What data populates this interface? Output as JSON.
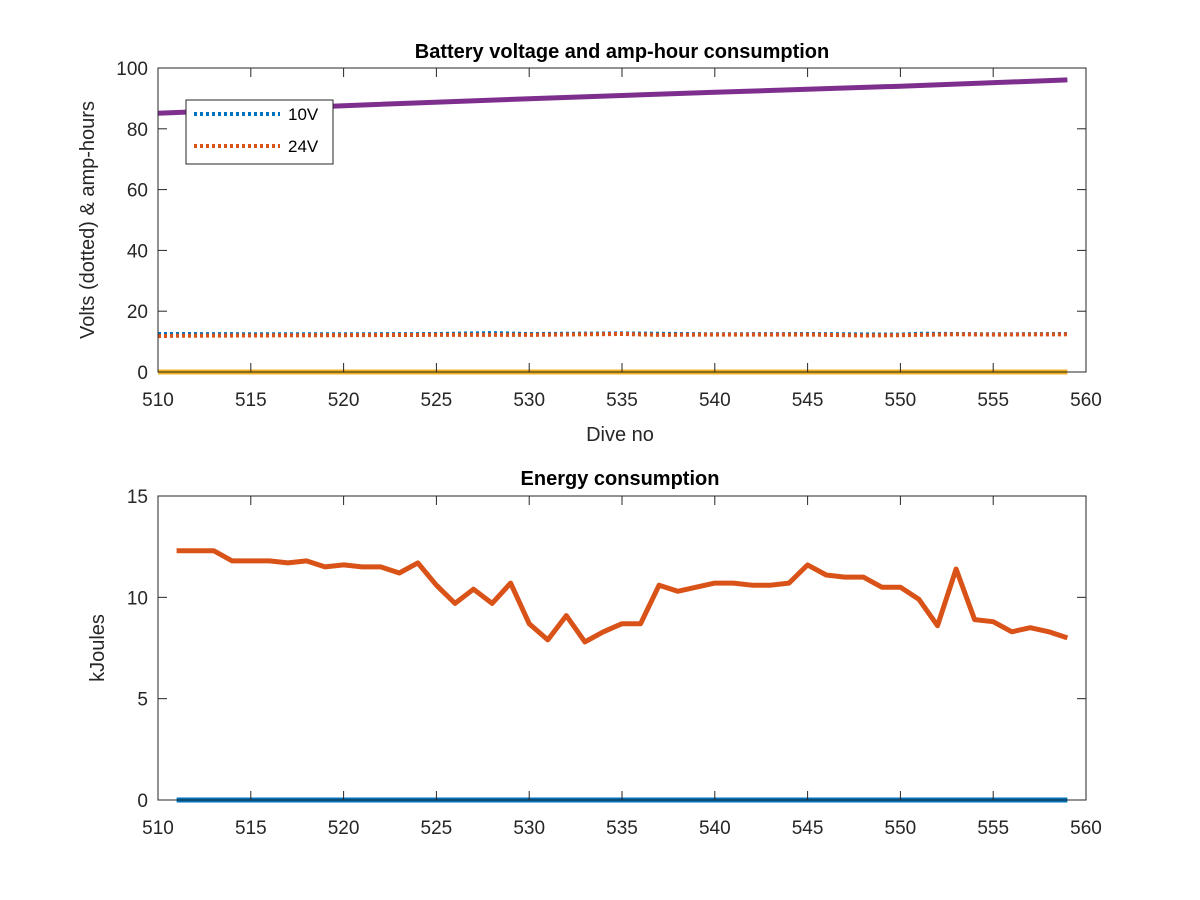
{
  "chart_data": [
    {
      "type": "line",
      "title": "Battery voltage and amp-hour consumption",
      "xlabel": "Dive no",
      "ylabel": "Volts (dotted) & amp-hours",
      "xlim": [
        510,
        560
      ],
      "ylim": [
        0,
        100
      ],
      "xticks": [
        510,
        515,
        520,
        525,
        530,
        535,
        540,
        545,
        550,
        555,
        560
      ],
      "yticks": [
        0,
        20,
        40,
        60,
        80,
        100
      ],
      "grid": false,
      "legend_position": "top-left",
      "series": [
        {
          "name": "10V",
          "style": "dotted",
          "color": "#0072BD",
          "x": [
            510,
            511,
            516,
            520,
            525,
            528,
            530,
            535,
            540,
            545,
            550,
            551,
            555,
            559
          ],
          "y": [
            12.5,
            12.5,
            12.4,
            12.4,
            12.5,
            12.8,
            12.5,
            12.7,
            12.4,
            12.5,
            12.3,
            12.6,
            12.4,
            12.5
          ]
        },
        {
          "name": "24V",
          "style": "dotted",
          "color": "#D95319",
          "x": [
            510,
            511,
            515,
            520,
            525,
            530,
            535,
            537,
            540,
            545,
            548,
            550,
            553,
            555,
            559
          ],
          "y": [
            11.8,
            11.9,
            12.0,
            12.1,
            12.2,
            12.2,
            12.5,
            12.2,
            12.3,
            12.3,
            12.0,
            12.1,
            12.4,
            12.3,
            12.4
          ]
        },
        {
          "style": "solid",
          "color": "#EDB120",
          "x": [
            510,
            559
          ],
          "y": [
            0,
            0
          ]
        },
        {
          "style": "solid",
          "color": "#7E2F8E",
          "x": [
            510,
            520,
            530,
            540,
            550,
            559
          ],
          "y": [
            85.1,
            87.6,
            89.9,
            92.0,
            94.0,
            96.1
          ]
        }
      ]
    },
    {
      "type": "line",
      "title": "Energy consumption",
      "xlabel": "",
      "ylabel": "kJoules",
      "xlim": [
        510,
        560
      ],
      "ylim": [
        0,
        15
      ],
      "xticks": [
        510,
        515,
        520,
        525,
        530,
        535,
        540,
        545,
        550,
        555,
        560
      ],
      "yticks": [
        0,
        5,
        10,
        15
      ],
      "grid": false,
      "series": [
        {
          "style": "solid",
          "color": "#0072BD",
          "x": [
            511,
            559
          ],
          "y": [
            0,
            0
          ]
        },
        {
          "style": "solid",
          "color": "#D95319",
          "x": [
            511,
            512,
            513,
            514,
            515,
            516,
            517,
            518,
            519,
            520,
            521,
            522,
            523,
            524,
            525,
            526,
            527,
            528,
            529,
            530,
            531,
            532,
            533,
            534,
            535,
            536,
            537,
            538,
            539,
            540,
            541,
            542,
            543,
            544,
            545,
            546,
            547,
            548,
            549,
            550,
            551,
            552,
            553,
            554,
            555,
            556,
            557,
            558,
            559
          ],
          "y": [
            12.3,
            12.3,
            12.3,
            11.8,
            11.8,
            11.8,
            11.7,
            11.8,
            11.5,
            11.6,
            11.5,
            11.5,
            11.2,
            11.7,
            10.6,
            9.7,
            10.4,
            9.7,
            10.7,
            8.7,
            7.9,
            9.1,
            7.8,
            8.3,
            8.7,
            8.7,
            10.6,
            10.3,
            10.5,
            10.7,
            10.7,
            10.6,
            10.6,
            10.7,
            11.6,
            11.1,
            11.0,
            11.0,
            10.5,
            10.5,
            9.9,
            8.6,
            11.4,
            8.9,
            8.8,
            8.3,
            8.5,
            8.3,
            8.0
          ]
        }
      ]
    }
  ]
}
